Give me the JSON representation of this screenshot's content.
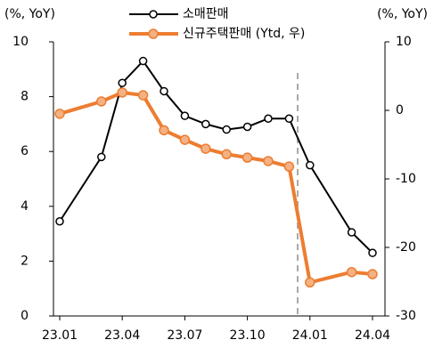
{
  "chart_data": {
    "type": "line",
    "y_label": "(%, YoY)",
    "y2_label": "(%, YoY)",
    "x": [
      "23.01",
      "23.03",
      "23.04",
      "23.05",
      "23.06",
      "23.07",
      "23.08",
      "23.09",
      "23.10",
      "23.11",
      "23.12",
      "24.01",
      "24.03",
      "24.04"
    ],
    "xticks": [
      "23.01",
      "23.04",
      "23.07",
      "23.10",
      "24.01",
      "24.04"
    ],
    "ylim": [
      0,
      10
    ],
    "yticks": [
      0,
      2,
      4,
      6,
      8,
      10
    ],
    "y2lim": [
      -30,
      10
    ],
    "y2ticks": [
      -30,
      -20,
      -10,
      0,
      10
    ],
    "series": [
      {
        "name": "소매판매",
        "color": "#000000",
        "values": [
          3.45,
          5.8,
          8.5,
          9.3,
          8.2,
          7.3,
          7.0,
          6.8,
          6.9,
          7.2,
          7.2,
          5.5,
          3.05,
          2.3
        ]
      },
      {
        "name": "신규주택판매 (Ytd, 우)",
        "color": "#ed7d31",
        "axis": "y2",
        "values": [
          -0.5,
          1.3,
          2.6,
          2.2,
          -2.9,
          -4.3,
          -5.6,
          -6.4,
          -6.9,
          -7.4,
          -8.2,
          -25.1,
          -23.6,
          -23.9
        ]
      }
    ]
  }
}
